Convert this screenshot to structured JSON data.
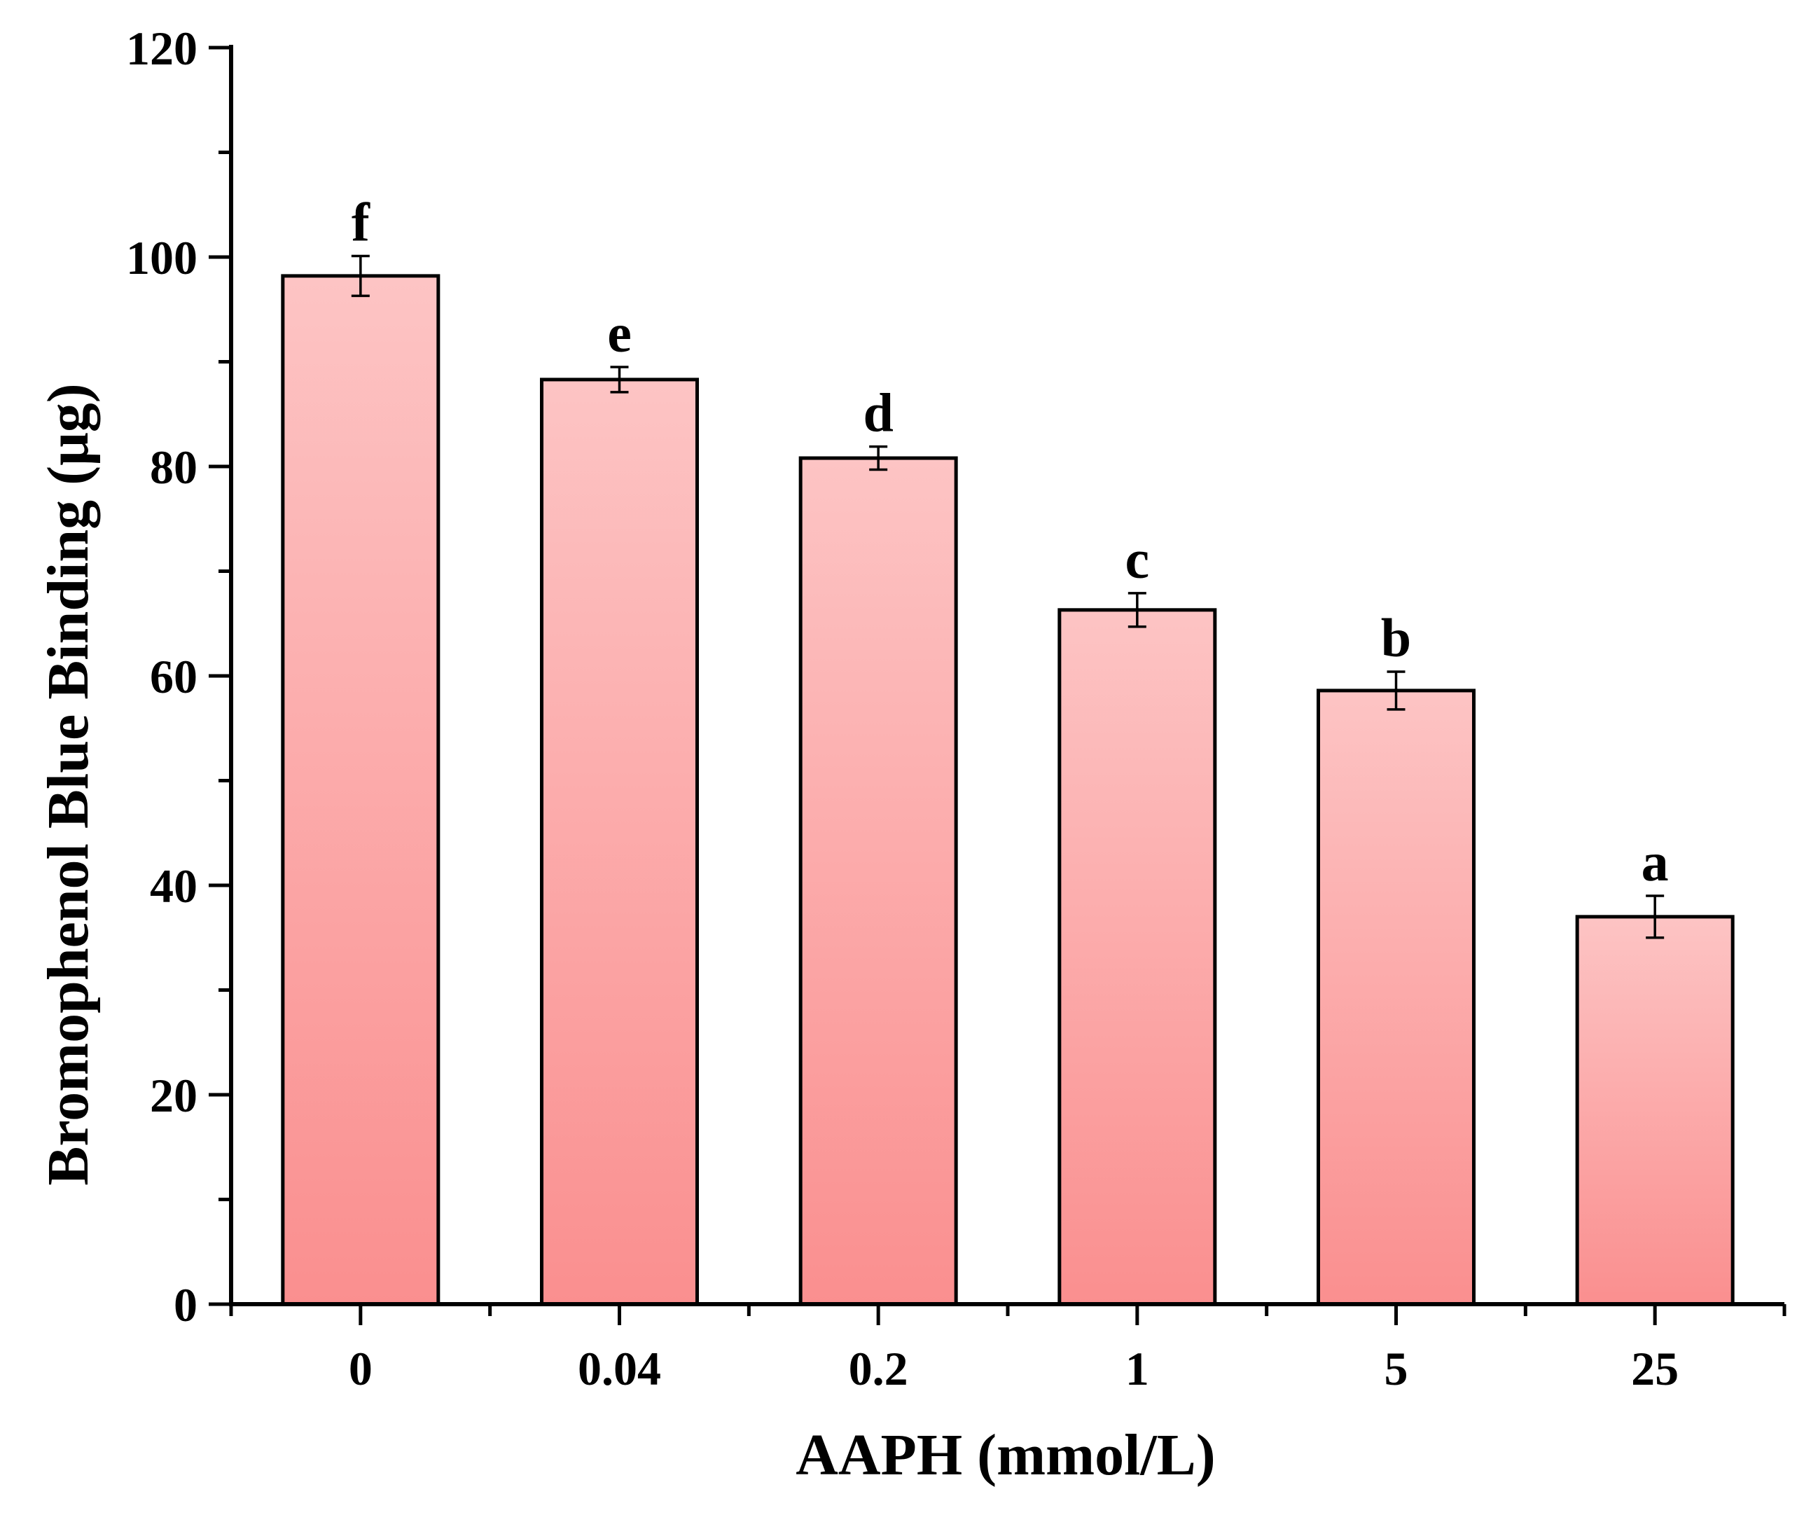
{
  "chart_data": {
    "type": "bar",
    "title": "",
    "xlabel": "AAPH (mmol/L)",
    "ylabel": "Bromophenol Blue Binding (μg)",
    "categories": [
      "0",
      "0.04",
      "0.2",
      "1",
      "5",
      "25"
    ],
    "values": [
      98.2,
      88.3,
      80.8,
      66.3,
      58.6,
      37.0
    ],
    "errors": [
      1.9,
      1.2,
      1.1,
      1.6,
      1.8,
      2.0
    ],
    "significance": [
      "f",
      "e",
      "d",
      "c",
      "b",
      "a"
    ],
    "ylim": [
      0,
      120
    ],
    "yticks": [
      0,
      20,
      40,
      60,
      80,
      100,
      120
    ],
    "grid": false,
    "legend": "none",
    "colors": {
      "bar_top": "#fdc4c4",
      "bar_bottom": "#fa8f8f",
      "outline": "#000000"
    }
  }
}
